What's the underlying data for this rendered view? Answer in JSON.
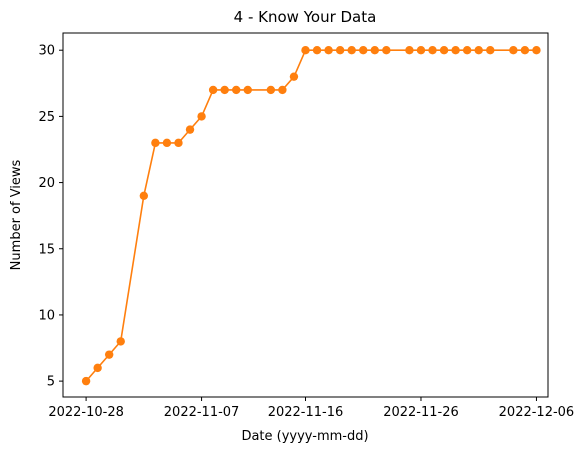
{
  "chart_data": {
    "type": "line",
    "title": "4 - Know Your Data",
    "xlabel": "Date (yyyy-mm-dd)",
    "ylabel": "Number of Views",
    "x_ticks": [
      "2022-10-28",
      "2022-11-07",
      "2022-11-16",
      "2022-11-26",
      "2022-12-06"
    ],
    "y_ticks": [
      5,
      10,
      15,
      20,
      25,
      30
    ],
    "xlim": [
      "2022-10-26",
      "2022-12-07"
    ],
    "ylim": [
      3.8,
      31.3
    ],
    "grid": false,
    "series": [
      {
        "color": "#ff7f0e",
        "marker": "circle",
        "points": [
          {
            "x": "2022-10-28",
            "y": 5
          },
          {
            "x": "2022-10-29",
            "y": 6
          },
          {
            "x": "2022-10-30",
            "y": 7
          },
          {
            "x": "2022-10-31",
            "y": 8
          },
          {
            "x": "2022-11-02",
            "y": 19
          },
          {
            "x": "2022-11-03",
            "y": 23
          },
          {
            "x": "2022-11-04",
            "y": 23
          },
          {
            "x": "2022-11-05",
            "y": 23
          },
          {
            "x": "2022-11-06",
            "y": 24
          },
          {
            "x": "2022-11-07",
            "y": 25
          },
          {
            "x": "2022-11-08",
            "y": 27
          },
          {
            "x": "2022-11-09",
            "y": 27
          },
          {
            "x": "2022-11-10",
            "y": 27
          },
          {
            "x": "2022-11-11",
            "y": 27
          },
          {
            "x": "2022-11-13",
            "y": 27
          },
          {
            "x": "2022-11-14",
            "y": 27
          },
          {
            "x": "2022-11-15",
            "y": 28
          },
          {
            "x": "2022-11-16",
            "y": 30
          },
          {
            "x": "2022-11-17",
            "y": 30
          },
          {
            "x": "2022-11-18",
            "y": 30
          },
          {
            "x": "2022-11-19",
            "y": 30
          },
          {
            "x": "2022-11-20",
            "y": 30
          },
          {
            "x": "2022-11-21",
            "y": 30
          },
          {
            "x": "2022-11-22",
            "y": 30
          },
          {
            "x": "2022-11-23",
            "y": 30
          },
          {
            "x": "2022-11-25",
            "y": 30
          },
          {
            "x": "2022-11-26",
            "y": 30
          },
          {
            "x": "2022-11-27",
            "y": 30
          },
          {
            "x": "2022-11-28",
            "y": 30
          },
          {
            "x": "2022-11-29",
            "y": 30
          },
          {
            "x": "2022-11-30",
            "y": 30
          },
          {
            "x": "2022-12-01",
            "y": 30
          },
          {
            "x": "2022-12-02",
            "y": 30
          },
          {
            "x": "2022-12-04",
            "y": 30
          },
          {
            "x": "2022-12-05",
            "y": 30
          },
          {
            "x": "2022-12-06",
            "y": 30
          }
        ]
      }
    ]
  }
}
